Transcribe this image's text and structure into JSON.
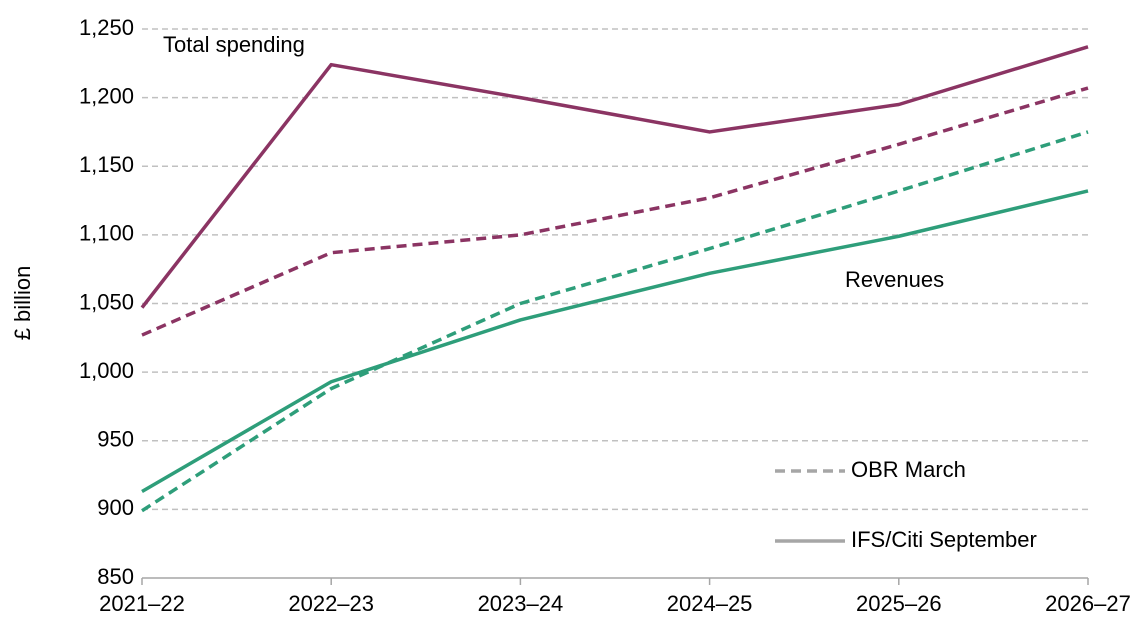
{
  "chart_data": {
    "type": "line",
    "ylabel": "£ billion",
    "categories": [
      "2021–22",
      "2022–23",
      "2023–24",
      "2024–25",
      "2025–26",
      "2026–27"
    ],
    "series": [
      {
        "color": "#8b3463",
        "dash": false,
        "values": [
          1047,
          1224,
          1200,
          1175,
          1195,
          1237
        ]
      },
      {
        "color": "#8b3463",
        "dash": true,
        "values": [
          1027,
          1087,
          1100,
          1127,
          1166,
          1207
        ]
      },
      {
        "color": "#2e9e7a",
        "dash": false,
        "values": [
          913,
          993,
          1038,
          1072,
          1099,
          1132
        ]
      },
      {
        "color": "#2e9e7a",
        "dash": true,
        "values": [
          899,
          988,
          1050,
          1090,
          1132,
          1175
        ]
      }
    ],
    "annotations": [
      {
        "text": "Total spending",
        "color": "#8b3463"
      },
      {
        "text": "Revenues",
        "color": "#2e9e7a"
      }
    ],
    "legend": [
      {
        "label": "OBR March",
        "dash": true,
        "color": "#a6a6a6"
      },
      {
        "label": "IFS/Citi September",
        "dash": false,
        "color": "#a6a6a6"
      }
    ],
    "ylim": [
      850,
      1250
    ],
    "yticks": [
      850,
      900,
      950,
      {
        "value": 1000,
        "label": "1,000"
      },
      {
        "value": 1050,
        "label": "1,050"
      },
      {
        "value": 1100,
        "label": "1,100"
      },
      {
        "value": 1150,
        "label": "1,150"
      },
      {
        "value": 1200,
        "label": "1,200"
      },
      {
        "value": 1250,
        "label": "1,250"
      }
    ],
    "grid": true
  }
}
